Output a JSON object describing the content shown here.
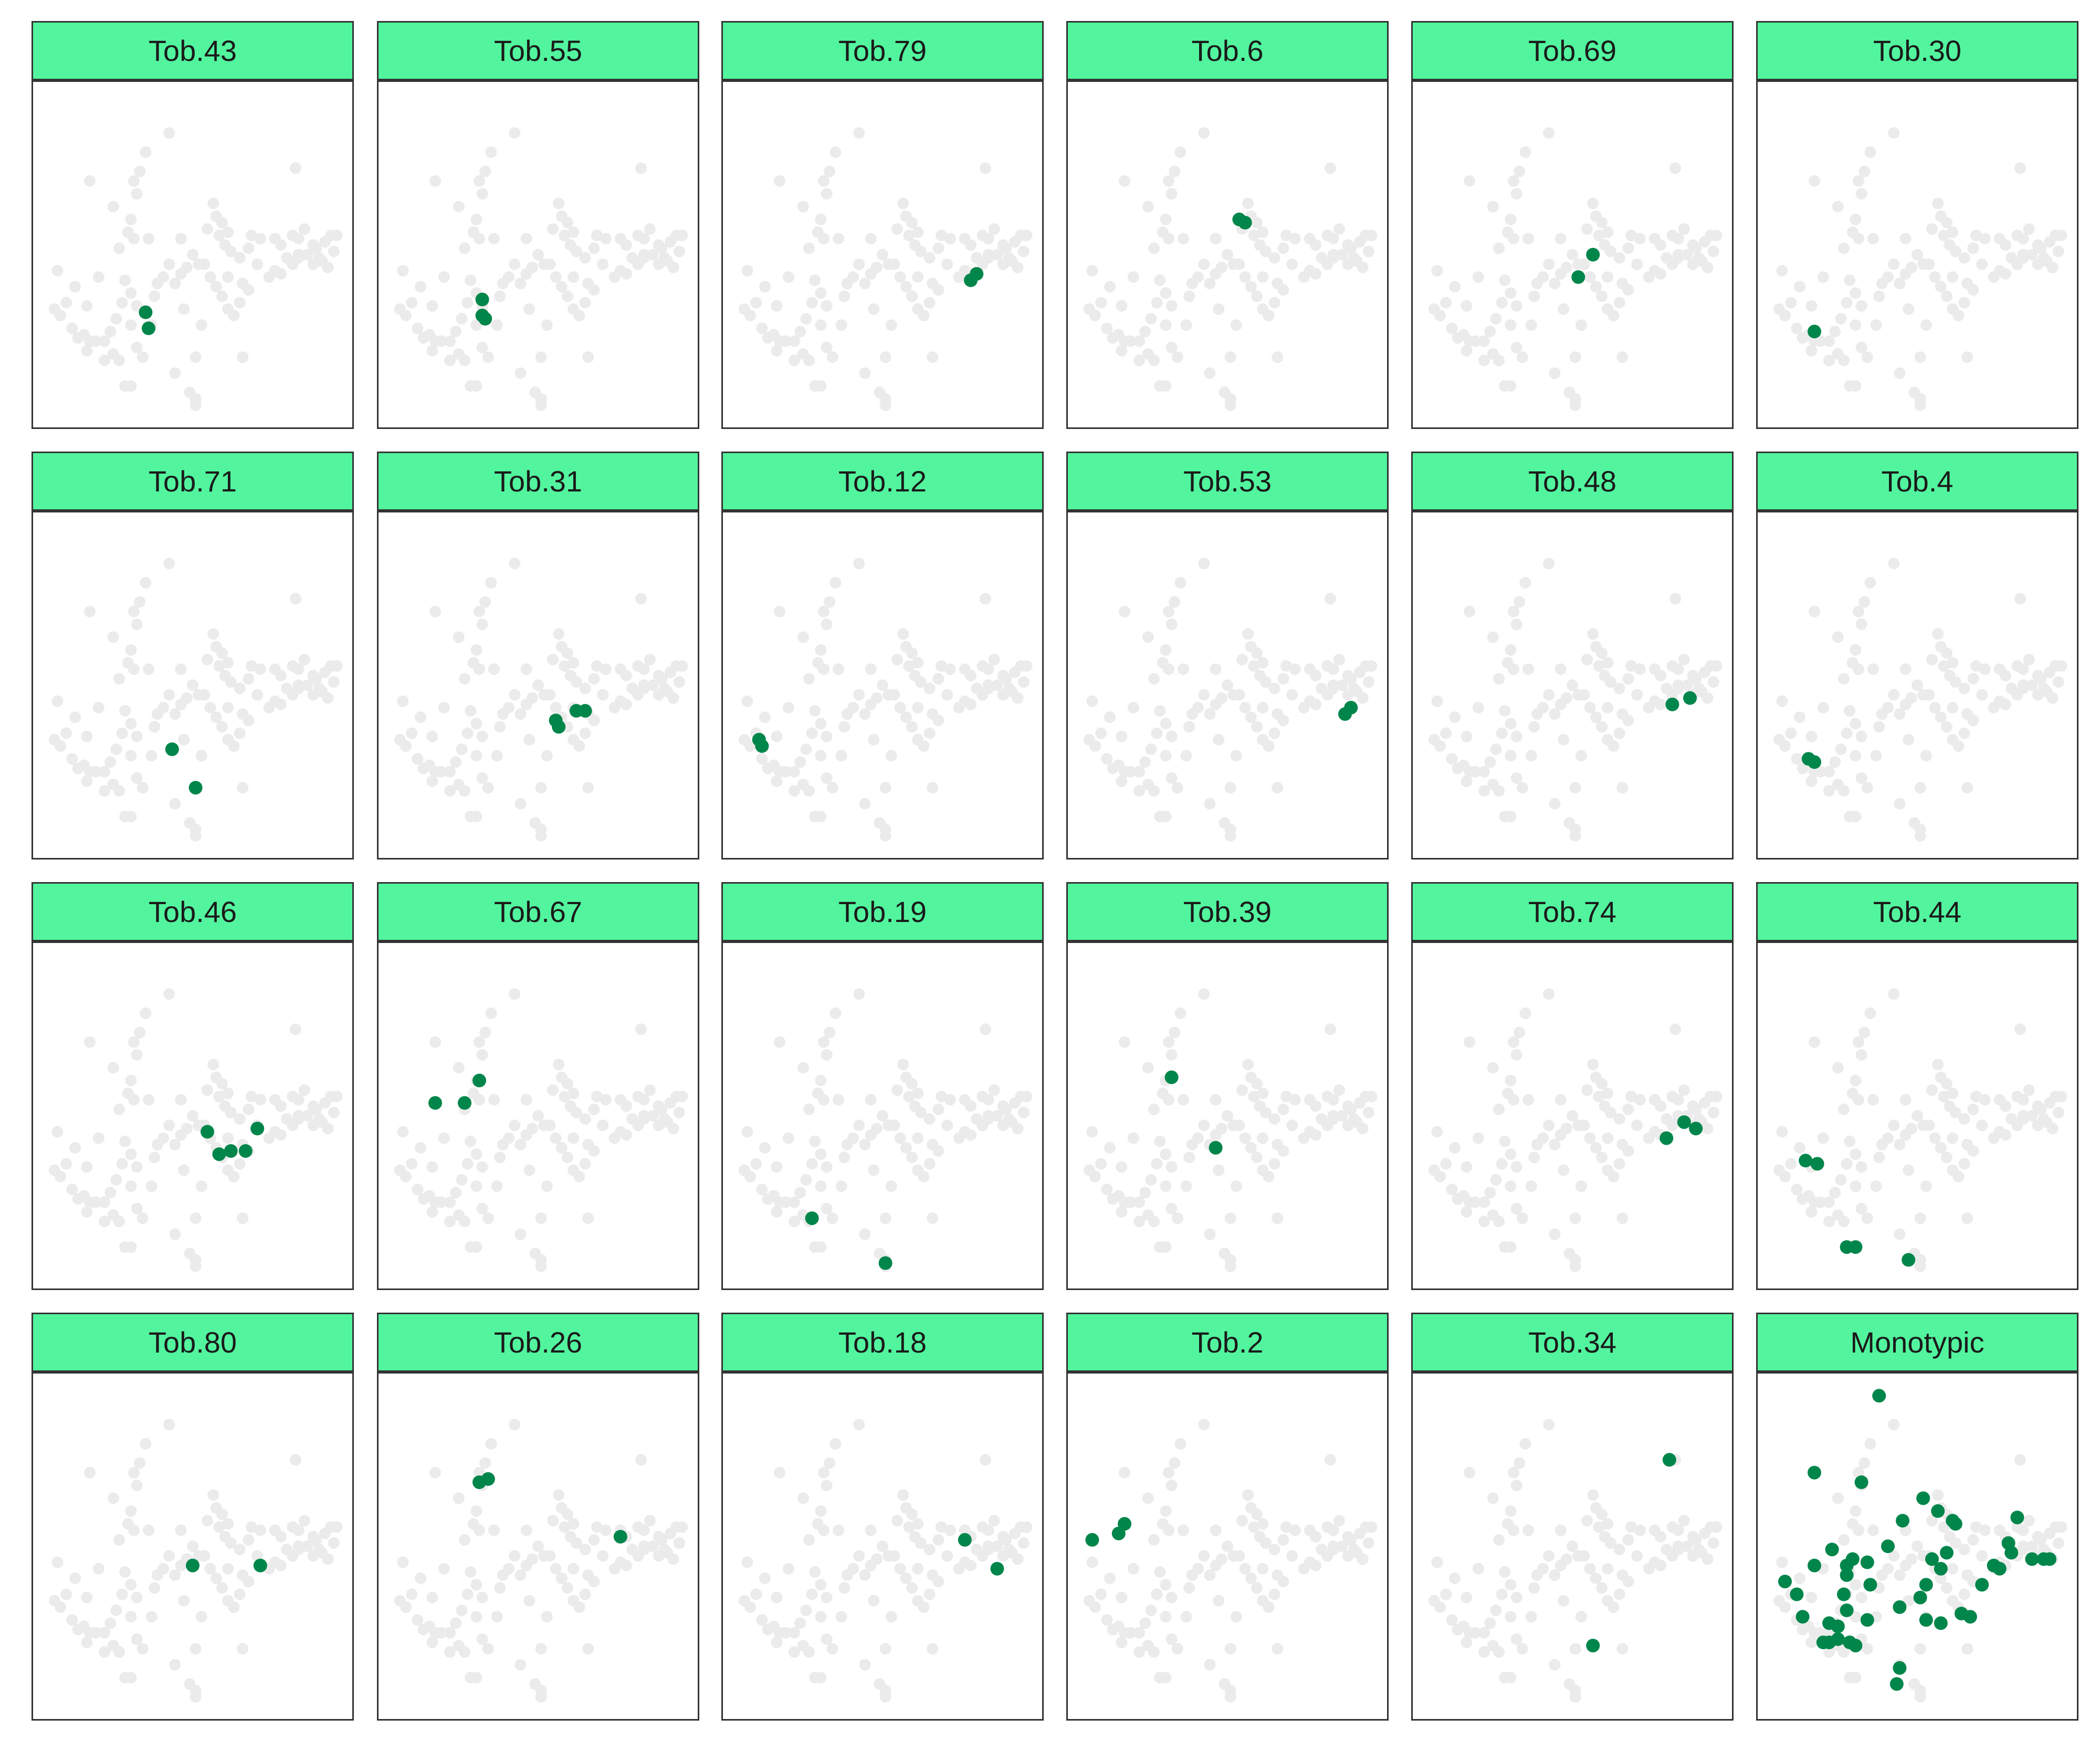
{
  "chart_data": {
    "type": "scatter",
    "layout": {
      "columns": 6,
      "rows": 4
    },
    "xlim": [
      0.0,
      1.0
    ],
    "ylim": [
      0.0,
      1.0
    ],
    "axes_visible": false,
    "grid": false,
    "legend": "none",
    "colors": {
      "strip_fill": "#52f59e",
      "highlight": "#00864a",
      "background_points": "#ebebeb",
      "frame": "#333333"
    },
    "background_points": [
      [
        0.04,
        0.45
      ],
      [
        0.15,
        0.73
      ],
      [
        0.03,
        0.33
      ],
      [
        0.05,
        0.31
      ],
      [
        0.07,
        0.35
      ],
      [
        0.09,
        0.27
      ],
      [
        0.11,
        0.24
      ],
      [
        0.14,
        0.2
      ],
      [
        0.13,
        0.25
      ],
      [
        0.15,
        0.23
      ],
      [
        0.17,
        0.23
      ],
      [
        0.14,
        0.34
      ],
      [
        0.2,
        0.23
      ],
      [
        0.22,
        0.26
      ],
      [
        0.23,
        0.19
      ],
      [
        0.25,
        0.17
      ],
      [
        0.24,
        0.3
      ],
      [
        0.26,
        0.35
      ],
      [
        0.25,
        0.52
      ],
      [
        0.28,
        0.57
      ],
      [
        0.3,
        0.55
      ],
      [
        0.29,
        0.61
      ],
      [
        0.31,
        0.69
      ],
      [
        0.3,
        0.73
      ],
      [
        0.32,
        0.76
      ],
      [
        0.34,
        0.82
      ],
      [
        0.23,
        0.65
      ],
      [
        0.27,
        0.42
      ],
      [
        0.29,
        0.38
      ],
      [
        0.31,
        0.34
      ],
      [
        0.29,
        0.28
      ],
      [
        0.31,
        0.21
      ],
      [
        0.33,
        0.18
      ],
      [
        0.37,
        0.37
      ],
      [
        0.4,
        0.43
      ],
      [
        0.42,
        0.47
      ],
      [
        0.38,
        0.41
      ],
      [
        0.27,
        0.09
      ],
      [
        0.29,
        0.09
      ],
      [
        0.44,
        0.13
      ],
      [
        0.49,
        0.07
      ],
      [
        0.51,
        0.03
      ],
      [
        0.51,
        0.05
      ],
      [
        0.44,
        0.41
      ],
      [
        0.46,
        0.44
      ],
      [
        0.48,
        0.46
      ],
      [
        0.5,
        0.5
      ],
      [
        0.52,
        0.47
      ],
      [
        0.55,
        0.58
      ],
      [
        0.58,
        0.62
      ],
      [
        0.6,
        0.6
      ],
      [
        0.62,
        0.57
      ],
      [
        0.57,
        0.66
      ],
      [
        0.59,
        0.56
      ],
      [
        0.61,
        0.53
      ],
      [
        0.63,
        0.51
      ],
      [
        0.54,
        0.47
      ],
      [
        0.56,
        0.43
      ],
      [
        0.58,
        0.4
      ],
      [
        0.6,
        0.37
      ],
      [
        0.62,
        0.33
      ],
      [
        0.64,
        0.31
      ],
      [
        0.66,
        0.35
      ],
      [
        0.67,
        0.41
      ],
      [
        0.69,
        0.39
      ],
      [
        0.53,
        0.28
      ],
      [
        0.51,
        0.18
      ],
      [
        0.67,
        0.18
      ],
      [
        0.62,
        0.43
      ],
      [
        0.66,
        0.49
      ],
      [
        0.69,
        0.52
      ],
      [
        0.7,
        0.56
      ],
      [
        0.73,
        0.55
      ],
      [
        0.72,
        0.47
      ],
      [
        0.76,
        0.43
      ],
      [
        0.78,
        0.45
      ],
      [
        0.8,
        0.44
      ],
      [
        0.82,
        0.49
      ],
      [
        0.84,
        0.47
      ],
      [
        0.86,
        0.49
      ],
      [
        0.8,
        0.53
      ],
      [
        0.78,
        0.55
      ],
      [
        0.86,
        0.55
      ],
      [
        0.89,
        0.5
      ],
      [
        0.91,
        0.47
      ],
      [
        0.93,
        0.49
      ],
      [
        0.92,
        0.52
      ],
      [
        0.94,
        0.48
      ],
      [
        0.96,
        0.46
      ],
      [
        0.98,
        0.51
      ],
      [
        0.95,
        0.54
      ],
      [
        0.84,
        0.56
      ],
      [
        0.97,
        0.56
      ],
      [
        0.99,
        0.56
      ],
      [
        0.88,
        0.58
      ],
      [
        0.91,
        0.53
      ],
      [
        0.85,
        0.77
      ],
      [
        0.42,
        0.88
      ],
      [
        0.86,
        0.5
      ],
      [
        0.47,
        0.33
      ],
      [
        0.2,
        0.17
      ],
      [
        0.35,
        0.55
      ],
      [
        0.1,
        0.4
      ],
      [
        0.18,
        0.43
      ],
      [
        0.36,
        0.28
      ],
      [
        0.46,
        0.55
      ]
    ],
    "panels": [
      {
        "label": "Tob.43",
        "points": [
          [
            0.34,
            0.32
          ],
          [
            0.35,
            0.27
          ]
        ]
      },
      {
        "label": "Tob.55",
        "points": [
          [
            0.31,
            0.36
          ],
          [
            0.31,
            0.31
          ],
          [
            0.32,
            0.3
          ]
        ]
      },
      {
        "label": "Tob.79",
        "points": [
          [
            0.8,
            0.42
          ],
          [
            0.82,
            0.44
          ]
        ]
      },
      {
        "label": "Tob.6",
        "points": [
          [
            0.54,
            0.61
          ],
          [
            0.56,
            0.6
          ]
        ]
      },
      {
        "label": "Tob.69",
        "points": [
          [
            0.52,
            0.43
          ],
          [
            0.57,
            0.5
          ]
        ]
      },
      {
        "label": "Tob.30",
        "points": [
          [
            0.15,
            0.26
          ]
        ]
      },
      {
        "label": "Tob.71",
        "points": [
          [
            0.43,
            0.3
          ],
          [
            0.51,
            0.18
          ]
        ]
      },
      {
        "label": "Tob.31",
        "points": [
          [
            0.56,
            0.39
          ],
          [
            0.57,
            0.37
          ],
          [
            0.63,
            0.42
          ],
          [
            0.66,
            0.42
          ]
        ]
      },
      {
        "label": "Tob.12",
        "points": [
          [
            0.08,
            0.33
          ],
          [
            0.09,
            0.31
          ]
        ]
      },
      {
        "label": "Tob.53",
        "points": [
          [
            0.9,
            0.41
          ],
          [
            0.92,
            0.43
          ]
        ]
      },
      {
        "label": "Tob.48",
        "points": [
          [
            0.84,
            0.44
          ],
          [
            0.9,
            0.46
          ]
        ]
      },
      {
        "label": "Tob.4",
        "points": [
          [
            0.13,
            0.27
          ],
          [
            0.15,
            0.26
          ]
        ]
      },
      {
        "label": "Tob.46",
        "points": [
          [
            0.55,
            0.45
          ],
          [
            0.59,
            0.38
          ],
          [
            0.63,
            0.39
          ],
          [
            0.68,
            0.39
          ],
          [
            0.72,
            0.46
          ]
        ]
      },
      {
        "label": "Tob.67",
        "points": [
          [
            0.15,
            0.54
          ],
          [
            0.25,
            0.54
          ],
          [
            0.3,
            0.61
          ]
        ]
      },
      {
        "label": "Tob.19",
        "points": [
          [
            0.26,
            0.18
          ],
          [
            0.51,
            0.04
          ]
        ]
      },
      {
        "label": "Tob.39",
        "points": [
          [
            0.31,
            0.62
          ],
          [
            0.46,
            0.4
          ]
        ]
      },
      {
        "label": "Tob.74",
        "points": [
          [
            0.82,
            0.43
          ],
          [
            0.88,
            0.48
          ],
          [
            0.92,
            0.46
          ]
        ]
      },
      {
        "label": "Tob.44",
        "points": [
          [
            0.12,
            0.36
          ],
          [
            0.16,
            0.35
          ],
          [
            0.26,
            0.09
          ],
          [
            0.29,
            0.09
          ],
          [
            0.47,
            0.05
          ]
        ]
      },
      {
        "label": "Tob.80",
        "points": [
          [
            0.5,
            0.44
          ],
          [
            0.73,
            0.44
          ]
        ]
      },
      {
        "label": "Tob.26",
        "points": [
          [
            0.3,
            0.7
          ],
          [
            0.33,
            0.71
          ],
          [
            0.78,
            0.53
          ]
        ]
      },
      {
        "label": "Tob.18",
        "points": [
          [
            0.78,
            0.52
          ],
          [
            0.89,
            0.43
          ]
        ]
      },
      {
        "label": "Tob.2",
        "points": [
          [
            0.04,
            0.52
          ],
          [
            0.13,
            0.54
          ],
          [
            0.15,
            0.57
          ]
        ]
      },
      {
        "label": "Tob.34",
        "points": [
          [
            0.83,
            0.77
          ],
          [
            0.57,
            0.19
          ]
        ]
      },
      {
        "label": "Monotypic",
        "points": [
          [
            0.37,
            0.97
          ],
          [
            0.15,
            0.73
          ],
          [
            0.31,
            0.7
          ],
          [
            0.52,
            0.65
          ],
          [
            0.57,
            0.61
          ],
          [
            0.45,
            0.58
          ],
          [
            0.62,
            0.58
          ],
          [
            0.63,
            0.57
          ],
          [
            0.84,
            0.59
          ],
          [
            0.4,
            0.5
          ],
          [
            0.21,
            0.49
          ],
          [
            0.28,
            0.46
          ],
          [
            0.15,
            0.44
          ],
          [
            0.6,
            0.48
          ],
          [
            0.81,
            0.51
          ],
          [
            0.82,
            0.48
          ],
          [
            0.89,
            0.46
          ],
          [
            0.93,
            0.46
          ],
          [
            0.95,
            0.46
          ],
          [
            0.26,
            0.44
          ],
          [
            0.33,
            0.45
          ],
          [
            0.55,
            0.46
          ],
          [
            0.76,
            0.44
          ],
          [
            0.78,
            0.43
          ],
          [
            0.72,
            0.38
          ],
          [
            0.58,
            0.43
          ],
          [
            0.53,
            0.38
          ],
          [
            0.34,
            0.38
          ],
          [
            0.26,
            0.41
          ],
          [
            0.05,
            0.39
          ],
          [
            0.09,
            0.35
          ],
          [
            0.25,
            0.35
          ],
          [
            0.51,
            0.34
          ],
          [
            0.44,
            0.31
          ],
          [
            0.26,
            0.3
          ],
          [
            0.11,
            0.28
          ],
          [
            0.2,
            0.26
          ],
          [
            0.23,
            0.25
          ],
          [
            0.33,
            0.27
          ],
          [
            0.53,
            0.27
          ],
          [
            0.65,
            0.29
          ],
          [
            0.68,
            0.28
          ],
          [
            0.58,
            0.26
          ],
          [
            0.23,
            0.21
          ],
          [
            0.18,
            0.2
          ],
          [
            0.2,
            0.2
          ],
          [
            0.27,
            0.2
          ],
          [
            0.29,
            0.19
          ],
          [
            0.44,
            0.12
          ],
          [
            0.43,
            0.07
          ]
        ]
      }
    ]
  }
}
